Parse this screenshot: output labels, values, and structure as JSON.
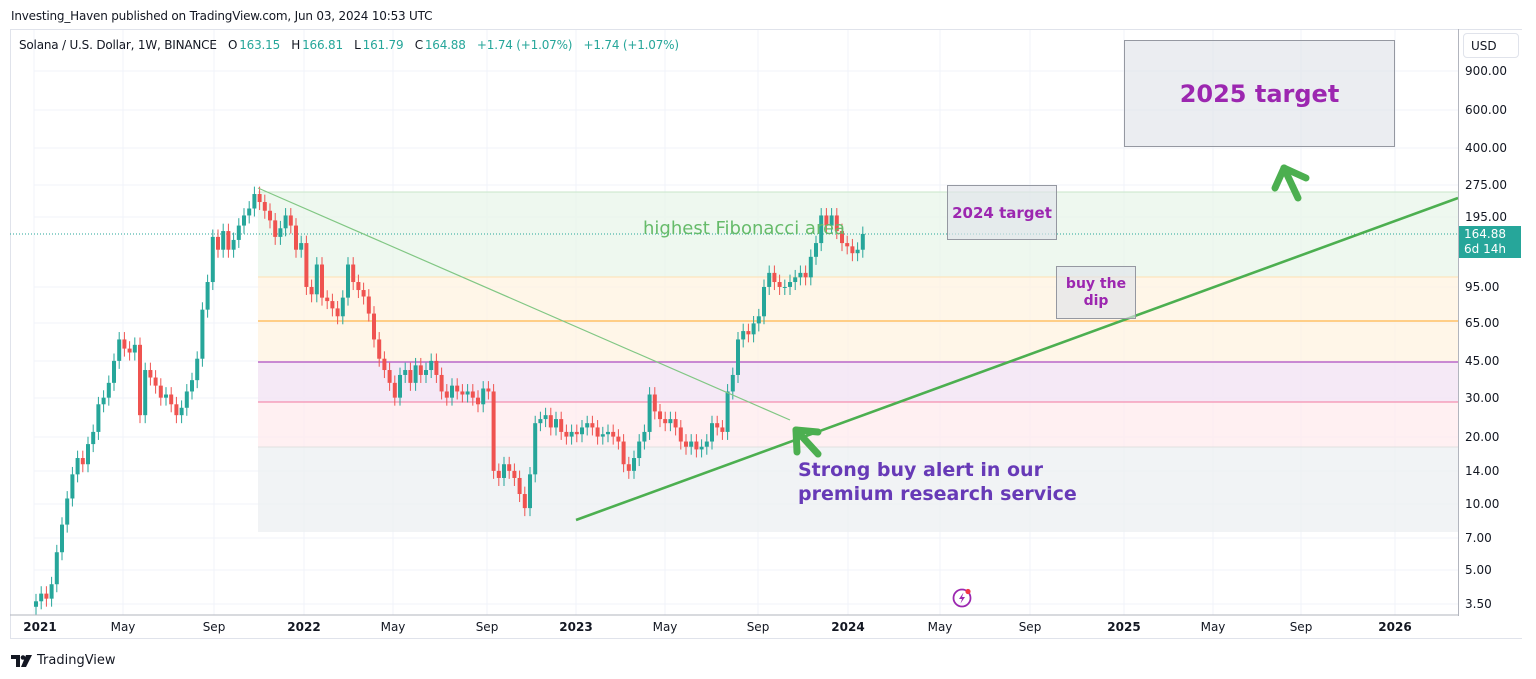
{
  "header": {
    "published": "Investing_Haven published on TradingView.com, Jun 03, 2024 10:53 UTC"
  },
  "legend": {
    "symbol": "Solana / U.S. Dollar, 1W, BINANCE",
    "open_label": "O",
    "open": "163.15",
    "high_label": "H",
    "high": "166.81",
    "low_label": "L",
    "low": "161.79",
    "close_label": "C",
    "close": "164.88",
    "change": "+1.74 (+1.07%)",
    "change2": "+1.74 (+1.07%)"
  },
  "price_axis": {
    "currency": "USD",
    "last_price": "164.88",
    "countdown": "6d 14h"
  },
  "annotations": {
    "target_2025": "2025 target",
    "target_2024": "2024 target",
    "buy_dip_line1": "buy the",
    "buy_dip_line2": "dip",
    "fib_area": "highest Fibonacci area",
    "strong_buy_line1": "Strong buy alert in our",
    "strong_buy_line2": "premium research service"
  },
  "footer": {
    "brand": "TradingView"
  },
  "colors": {
    "up": "#26a69a",
    "down": "#ef5350",
    "trendline": "#4caf50",
    "annotation_purple": "#9c27b0",
    "strong_buy": "#673ab7"
  },
  "chart_data": {
    "type": "candlestick",
    "title": "Solana / U.S. Dollar, 1W, BINANCE",
    "scale": "log",
    "y_ticks": [
      "900.00",
      "600.00",
      "400.00",
      "275.00",
      "195.00",
      "95.00",
      "65.00",
      "45.00",
      "30.00",
      "20.00",
      "14.00",
      "10.00",
      "7.00",
      "5.00",
      "3.50"
    ],
    "x_ticks": [
      "2021",
      "May",
      "Sep",
      "2022",
      "May",
      "Sep",
      "2023",
      "May",
      "Sep",
      "2024",
      "May",
      "Sep",
      "2025",
      "May",
      "Sep",
      "2026"
    ],
    "last_ohlc": {
      "open": 163.15,
      "high": 166.81,
      "low": 161.79,
      "close": 164.88
    },
    "fibonacci_levels": [
      {
        "price": 258,
        "color": "#4caf50"
      },
      {
        "price": 106,
        "color": "#ff9800"
      },
      {
        "price": 66,
        "color": "#ff9800"
      },
      {
        "price": 44,
        "color": "#9c27b0"
      },
      {
        "price": 29,
        "color": "#f06292"
      },
      {
        "price": 18.5,
        "color": "#9598a1"
      },
      {
        "price": 7.6,
        "color": "#9598a1"
      }
    ],
    "trendlines": [
      {
        "name": "downtrend",
        "from": [
          "2021-11",
          260
        ],
        "to": [
          "2023-10",
          23
        ]
      },
      {
        "name": "uptrend",
        "from": [
          "2022-12",
          8.2
        ],
        "to": [
          "2026-06",
          250
        ]
      }
    ],
    "approx_weekly_closes": [
      {
        "date": "2021-01",
        "close": 3.5
      },
      {
        "date": "2021-03",
        "close": 15
      },
      {
        "date": "2021-05",
        "close": 45
      },
      {
        "date": "2021-07",
        "close": 30
      },
      {
        "date": "2021-09",
        "close": 140
      },
      {
        "date": "2021-11",
        "close": 240
      },
      {
        "date": "2022-01",
        "close": 140
      },
      {
        "date": "2022-03",
        "close": 120
      },
      {
        "date": "2022-05",
        "close": 50
      },
      {
        "date": "2022-08",
        "close": 40
      },
      {
        "date": "2022-11",
        "close": 14
      },
      {
        "date": "2022-12",
        "close": 10
      },
      {
        "date": "2023-02",
        "close": 24
      },
      {
        "date": "2023-06",
        "close": 16
      },
      {
        "date": "2023-07",
        "close": 26
      },
      {
        "date": "2023-10",
        "close": 30
      },
      {
        "date": "2023-12",
        "close": 100
      },
      {
        "date": "2024-03",
        "close": 200
      },
      {
        "date": "2024-05",
        "close": 164.88
      }
    ]
  }
}
